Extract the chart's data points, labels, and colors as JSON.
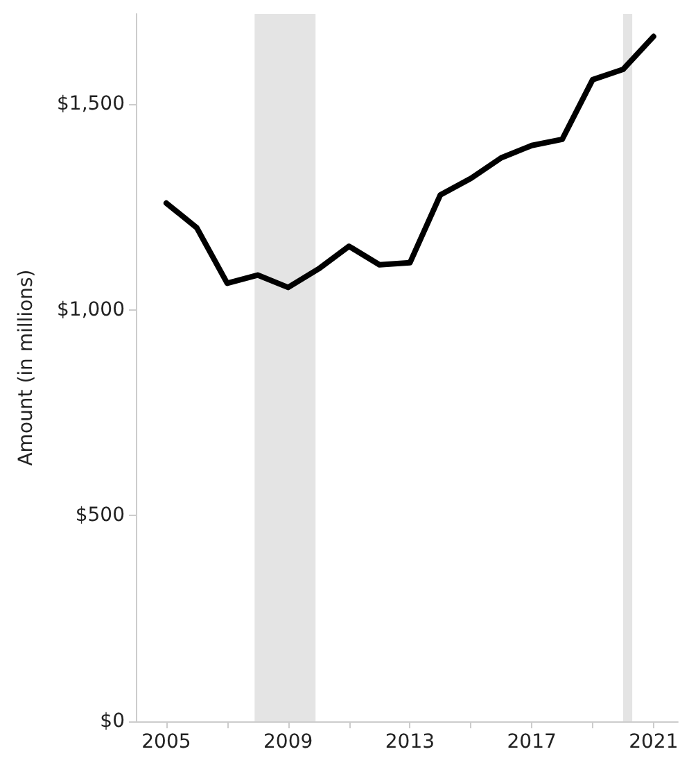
{
  "chart_data": {
    "type": "line",
    "ylabel": "Amount (in millions)",
    "x": [
      2005,
      2006,
      2007,
      2008,
      2009,
      2010,
      2011,
      2012,
      2013,
      2014,
      2015,
      2016,
      2017,
      2018,
      2019,
      2020,
      2021
    ],
    "series": [
      {
        "color": "#000000",
        "values": [
          1260,
          1200,
          1065,
          1085,
          1055,
          1100,
          1155,
          1110,
          1115,
          1280,
          1320,
          1370,
          1400,
          1415,
          1560,
          1585,
          1665
        ]
      }
    ],
    "xlim": [
      2004,
      2021.8
    ],
    "xticks": [
      2005,
      {
        "value": 2007,
        "label": null
      },
      2009,
      {
        "value": 2011,
        "label": null
      },
      2013,
      {
        "value": 2015,
        "label": null
      },
      2017,
      {
        "value": 2019,
        "label": null
      },
      2021
    ],
    "ylim": [
      0,
      1720
    ],
    "yticks": [
      {
        "value": 0,
        "label": "$0"
      },
      {
        "value": 500,
        "label": "$500"
      },
      {
        "value": 1000,
        "label": "$1,000"
      },
      {
        "value": 1500,
        "label": "$1,500"
      }
    ],
    "bands": [
      {
        "axis": "x",
        "from": 2007.9,
        "to": 2009.9,
        "color": "#d9d9d9"
      },
      {
        "axis": "x",
        "from": 2020,
        "to": 2020.3,
        "color": "#d9d9d9"
      }
    ],
    "grid": false,
    "marker": "none",
    "line_style": "solid"
  }
}
